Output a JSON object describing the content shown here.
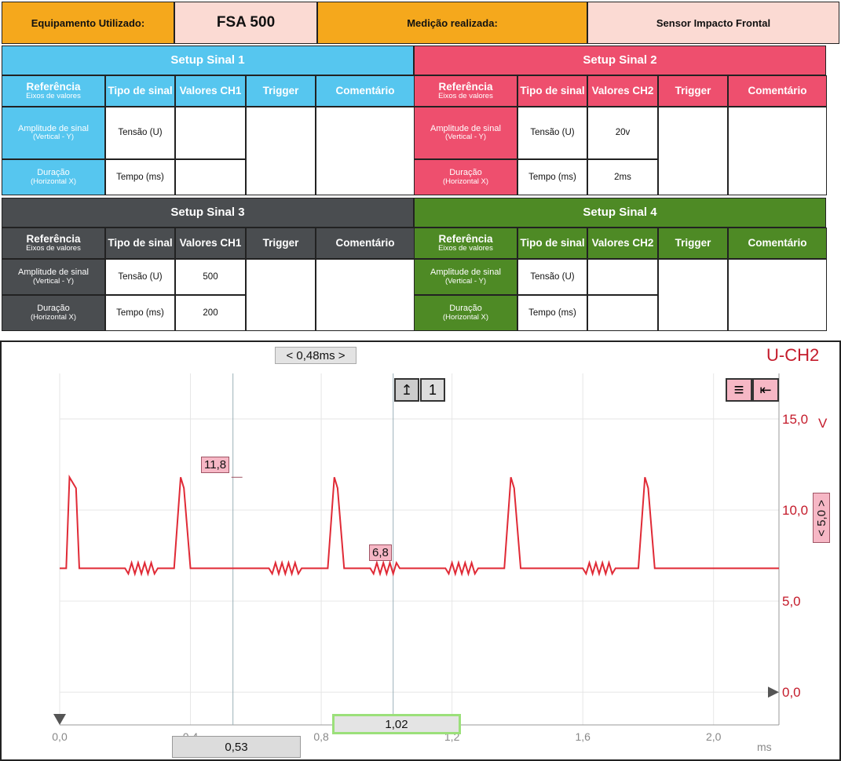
{
  "header": {
    "equip_label": "Equipamento Utilizado:",
    "equip_value": "FSA 500",
    "measure_label": "Medição realizada:",
    "measure_value": "Sensor Impacto Frontal"
  },
  "setups": [
    {
      "title": "Setup Sinal 1",
      "ref_label": "Referência",
      "ref_sub": "Eixos de valores",
      "type_label": "Tipo de sinal",
      "values_label": "Valores CH1",
      "trigger_label": "Trigger",
      "comment_label": "Comentário",
      "amp_label": "Amplitude de sinal",
      "amp_sub": "(Vertical - Y)",
      "dur_label": "Duração",
      "dur_sub": "(Horizontal X)",
      "amp_type": "Tensão (U)",
      "dur_type": "Tempo (ms)",
      "amp_value": "",
      "dur_value": ""
    },
    {
      "title": "Setup Sinal 2",
      "ref_label": "Referência",
      "ref_sub": "Eixos de valores",
      "type_label": "Tipo de sinal",
      "values_label": "Valores CH2",
      "trigger_label": "Trigger",
      "comment_label": "Comentário",
      "amp_label": "Amplitude de sinal",
      "amp_sub": "(Vertical - Y)",
      "dur_label": "Duração",
      "dur_sub": "(Horizontal X)",
      "amp_type": "Tensão (U)",
      "dur_type": "Tempo (ms)",
      "amp_value": "20v",
      "dur_value": "2ms"
    },
    {
      "title": "Setup Sinal 3",
      "ref_label": "Referência",
      "ref_sub": "Eixos de valores",
      "type_label": "Tipo de sinal",
      "values_label": "Valores CH1",
      "trigger_label": "Trigger",
      "comment_label": "Comentário",
      "amp_label": "Amplitude de sinal",
      "amp_sub": "(Vertical - Y)",
      "dur_label": "Duração",
      "dur_sub": "(Horizontal X)",
      "amp_type": "Tensão (U)",
      "dur_type": "Tempo (ms)",
      "amp_value": "500",
      "dur_value": "200"
    },
    {
      "title": "Setup Sinal 4",
      "ref_label": "Referência",
      "ref_sub": "Eixos de valores",
      "type_label": "Tipo de sinal",
      "values_label": "Valores CH2",
      "trigger_label": "Trigger",
      "comment_label": "Comentário",
      "amp_label": "Amplitude de sinal",
      "amp_sub": "(Vertical - Y)",
      "dur_label": "Duração",
      "dur_sub": "(Horizontal X)",
      "amp_type": "Tensão (U)",
      "dur_type": "Tempo (ms)",
      "amp_value": "",
      "dur_value": ""
    }
  ],
  "scope": {
    "channel": "U-CH2",
    "cursor_delta": "< 0,48ms >",
    "trigger_number": "1",
    "scale_badge": "< 5,0 >",
    "unit_y": "V",
    "unit_x": "ms",
    "cursor_a_readout": "0,53",
    "cursor_b_readout": "1,02",
    "label_peak": "11,8",
    "label_base": "6,8",
    "colors": {
      "trace": "#e02a36",
      "axis_text": "#c41a2a",
      "badge": "#f6b7c5",
      "readout_border": "#9be07a"
    }
  },
  "chart_data": {
    "type": "line",
    "title": "",
    "xlabel": "ms",
    "ylabel": "V",
    "xlim": [
      0.0,
      2.2
    ],
    "ylim": [
      -1.8,
      17.5
    ],
    "x_ticks": [
      "0,0",
      "0,4",
      "0,8",
      "1,2",
      "1,6",
      "2,0"
    ],
    "x_tick_values": [
      0.0,
      0.4,
      0.8,
      1.2,
      1.6,
      2.0
    ],
    "y_ticks": [
      "0,0",
      "5,0",
      "10,0",
      "15,0"
    ],
    "y_tick_values": [
      0,
      5,
      10,
      15
    ],
    "grid": true,
    "series": [
      {
        "x": [
          0.0,
          0.02,
          0.03,
          0.05,
          0.06,
          0.2,
          0.21,
          0.22,
          0.23,
          0.24,
          0.25,
          0.26,
          0.27,
          0.28,
          0.29,
          0.3,
          0.34,
          0.35,
          0.37,
          0.38,
          0.4,
          0.44,
          0.45,
          0.47,
          0.48,
          0.49,
          0.5,
          0.51,
          0.52,
          0.53,
          0.54,
          0.55,
          0.56,
          0.58,
          0.64,
          0.65,
          0.66,
          0.67,
          0.68,
          0.69,
          0.7,
          0.71,
          0.72,
          0.73,
          0.74,
          0.76,
          0.81,
          0.82,
          0.84,
          0.85,
          0.87,
          0.92,
          0.95,
          0.96,
          0.97,
          0.98,
          0.99,
          1.0,
          1.01,
          1.02,
          1.03,
          1.04,
          1.06,
          1.08,
          1.1,
          1.12,
          1.18,
          1.19,
          1.2,
          1.21,
          1.22,
          1.23,
          1.24,
          1.25,
          1.26,
          1.27,
          1.28,
          1.3,
          1.35,
          1.36,
          1.38,
          1.39,
          1.41,
          1.6,
          1.61,
          1.62,
          1.63,
          1.64,
          1.65,
          1.66,
          1.67,
          1.68,
          1.69,
          1.7,
          1.72,
          1.76,
          1.77,
          1.79,
          1.8,
          1.82,
          2.2
        ],
        "y": [
          6.8,
          6.8,
          11.8,
          11.2,
          6.8,
          6.8,
          6.5,
          7.1,
          6.5,
          7.1,
          6.5,
          7.1,
          6.5,
          7.1,
          6.5,
          6.8,
          6.8,
          6.8,
          11.8,
          11.2,
          6.8,
          6.8,
          6.8,
          6.8,
          6.8,
          6.8,
          6.8,
          6.8,
          6.8,
          6.8,
          6.8,
          6.8,
          6.8,
          6.8,
          6.8,
          6.5,
          7.1,
          6.5,
          7.1,
          6.5,
          7.1,
          6.5,
          7.1,
          6.5,
          6.8,
          6.8,
          6.8,
          6.8,
          11.8,
          11.2,
          6.8,
          6.8,
          6.8,
          6.5,
          7.1,
          6.5,
          7.1,
          6.5,
          7.1,
          6.5,
          7.1,
          6.8,
          6.8,
          6.8,
          6.8,
          6.8,
          6.8,
          6.5,
          7.1,
          6.5,
          7.1,
          6.5,
          7.1,
          6.5,
          7.1,
          6.5,
          6.8,
          6.8,
          6.8,
          6.8,
          11.8,
          11.2,
          6.8,
          6.8,
          6.5,
          7.1,
          6.5,
          7.1,
          6.5,
          7.1,
          6.5,
          7.1,
          6.5,
          6.8,
          6.8,
          6.8,
          6.8,
          11.8,
          11.2,
          6.8,
          6.8
        ]
      }
    ],
    "cursors_ms": [
      0.53,
      1.02
    ]
  }
}
